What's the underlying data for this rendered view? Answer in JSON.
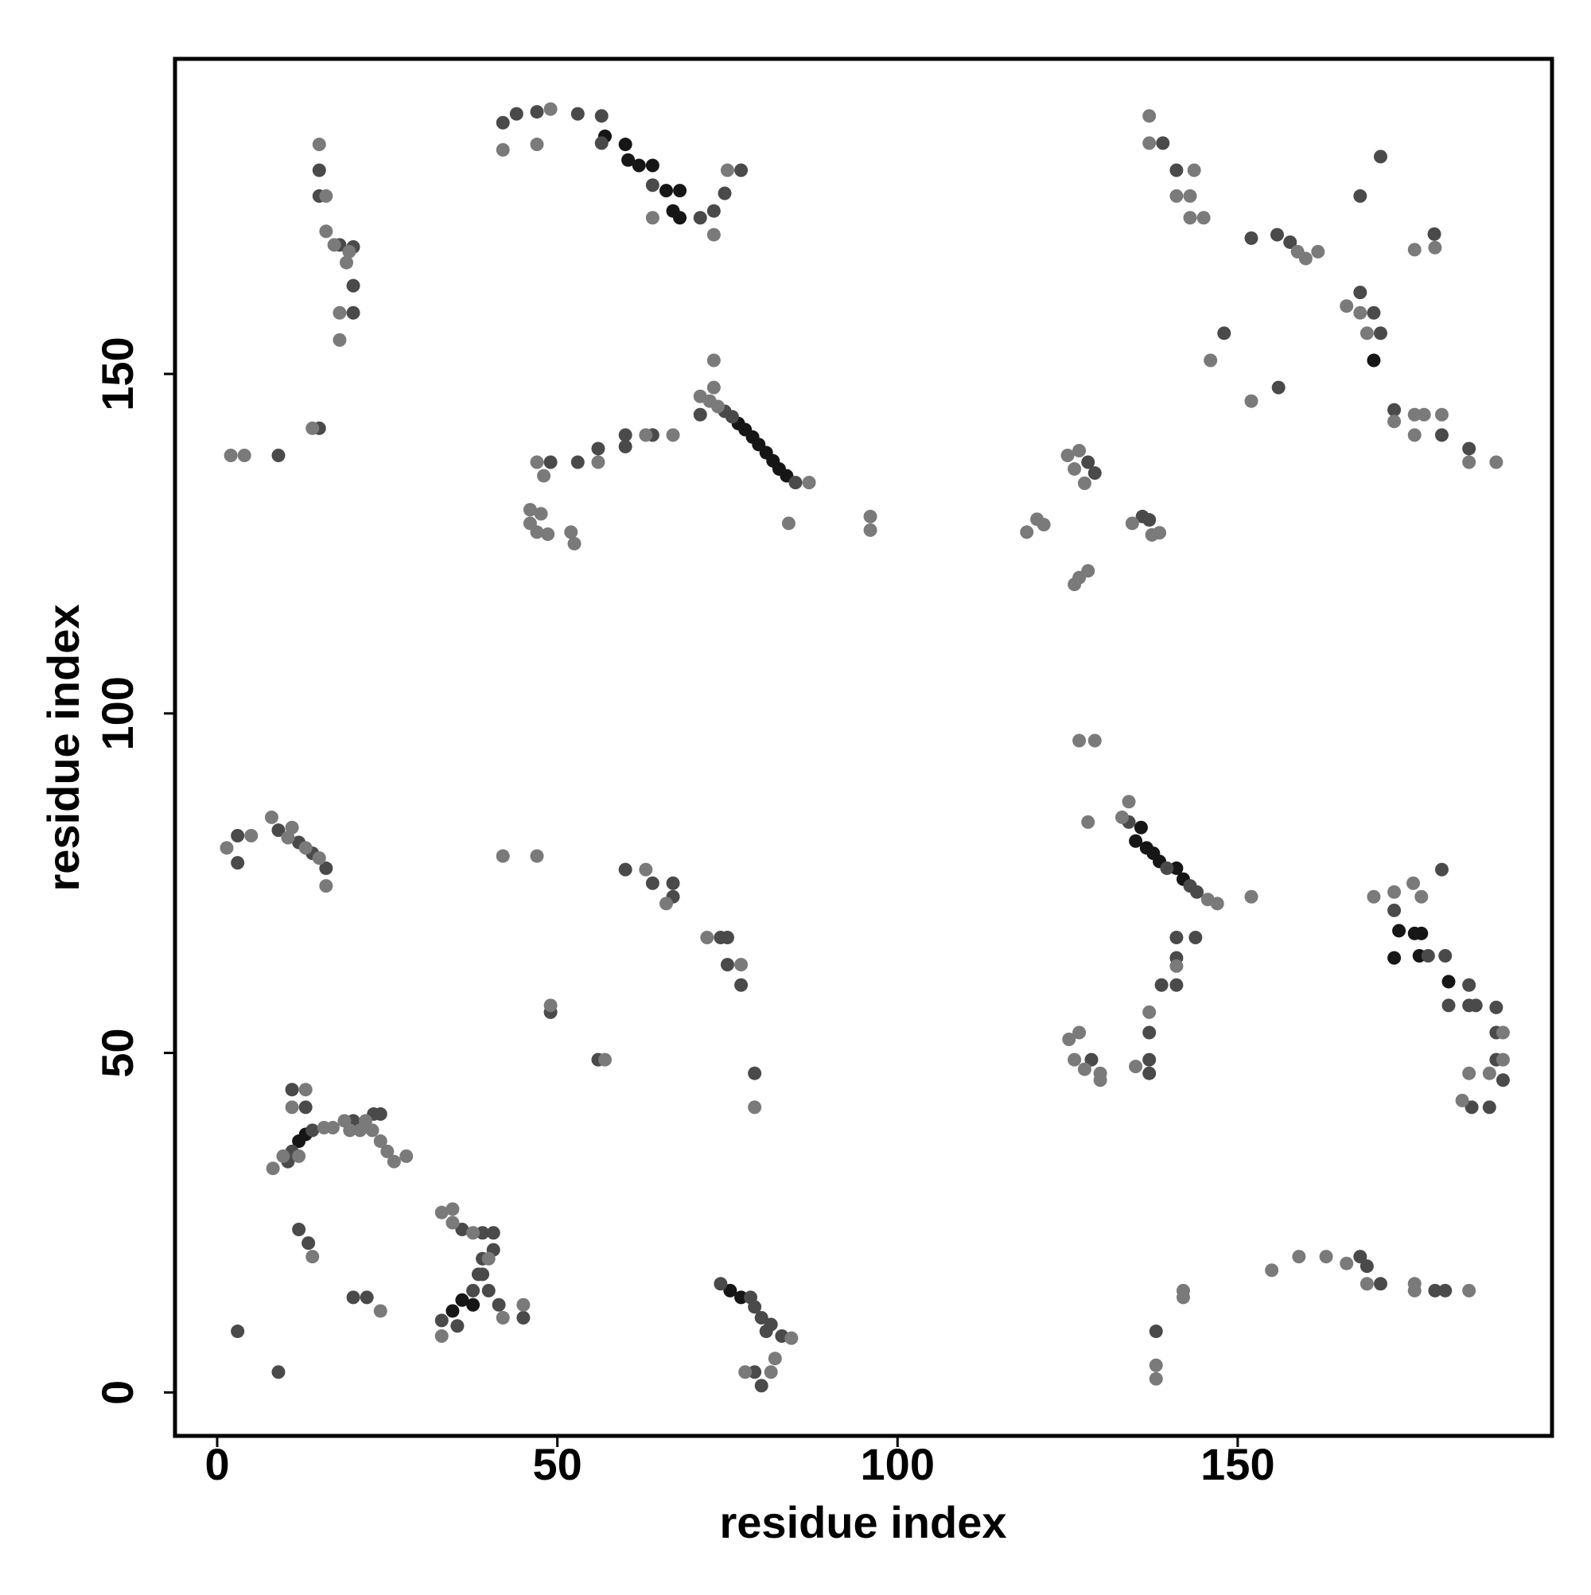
{
  "chart_data": {
    "type": "scatter",
    "x_label": "residue index",
    "y_label": "residue index",
    "xlim": [
      -6.2,
      196.2
    ],
    "ylim": [
      -6.4,
      196.4
    ],
    "xticks": [
      0,
      50,
      100,
      150
    ],
    "yticks": [
      0,
      50,
      100,
      150
    ],
    "series": [
      {
        "color": "#161616",
        "x": [
          135.8,
          135,
          136.6,
          137.6,
          138.5,
          141,
          142,
          76.6,
          77.6,
          78.7,
          79.6,
          80.7,
          81.7,
          82.6,
          83.7,
          57,
          60,
          60.4,
          62,
          64,
          66,
          68,
          67,
          68,
          173.7,
          176,
          177,
          173,
          176.7,
          181,
          36,
          37.6,
          34.6,
          12,
          13,
          75.4,
          77,
          170
        ],
        "y": [
          83.2,
          81.2,
          80.2,
          79.4,
          78.2,
          77.2,
          75.6,
          142.7,
          141.8,
          140.7,
          139.6,
          138.4,
          137.2,
          136,
          135,
          185,
          183.8,
          181.5,
          180.7,
          180.7,
          177,
          177,
          174,
          173,
          68,
          67.6,
          67.6,
          64,
          64.3,
          60.5,
          13.6,
          12.9,
          12,
          37,
          38,
          15,
          14,
          152
        ]
      },
      {
        "color": "#4a4a4a",
        "x": [
          11,
          14,
          20,
          23,
          24,
          11,
          13,
          10.4,
          36,
          39,
          40.6,
          40.6,
          39,
          38.4,
          37.6,
          33,
          35.3,
          39.9,
          41.4,
          45,
          39,
          12,
          13.4,
          20,
          22,
          3,
          9,
          74,
          78.4,
          79,
          80,
          81.4,
          80.7,
          83,
          79,
          80,
          3,
          3,
          9,
          12,
          14,
          16,
          60,
          64,
          67,
          67,
          74,
          75,
          75,
          77,
          49,
          56,
          79,
          134,
          139.6,
          143,
          144,
          141,
          143.8,
          141,
          138.8,
          141,
          137,
          137,
          137,
          128.5,
          173,
          178,
          180.5,
          184,
          181,
          184,
          185,
          188,
          188,
          188,
          189,
          184.4,
          187,
          180,
          168,
          169,
          171,
          179,
          180.5,
          138,
          42,
          44,
          47,
          53,
          56.5,
          56.5,
          64,
          71,
          73,
          74.6,
          77,
          15,
          15,
          18,
          20,
          20,
          20,
          15,
          9,
          74.6,
          75.7,
          85,
          71,
          64,
          60,
          60,
          56,
          49,
          53,
          128,
          129,
          136,
          137,
          139,
          141,
          152,
          155.8,
          157.7,
          168,
          170,
          171,
          148,
          156,
          171,
          168,
          178.9,
          173,
          180,
          184
        ],
        "y": [
          35.5,
          38.6,
          40,
          41,
          41,
          44.6,
          42,
          34,
          24,
          23.5,
          23.5,
          21,
          19.7,
          17.4,
          15,
          10.6,
          9.8,
          15,
          12.9,
          11,
          17.4,
          24,
          22,
          14,
          14,
          9,
          3,
          16,
          14,
          12.6,
          11,
          10,
          9,
          8.3,
          3,
          1,
          78,
          82,
          82.8,
          81,
          79.4,
          77.2,
          77,
          75,
          75,
          73,
          67,
          67,
          63,
          60,
          56,
          49,
          47,
          84,
          77.2,
          74.6,
          73.7,
          67,
          67,
          64,
          60,
          60,
          53,
          49,
          47,
          49,
          71,
          64.3,
          64.3,
          60,
          57,
          57,
          57,
          56.7,
          53,
          49,
          46,
          42,
          42,
          77,
          20,
          18.6,
          16,
          15,
          15,
          9,
          187,
          188.3,
          188.6,
          188.3,
          188,
          184,
          177.8,
          173,
          174,
          176.6,
          180,
          180,
          176.2,
          169,
          168.7,
          163,
          159,
          142,
          138,
          144.5,
          143.7,
          134,
          144,
          141,
          141,
          139.3,
          139,
          137,
          137,
          137,
          135.4,
          129,
          128.5,
          184,
          180,
          170,
          170.5,
          169.4,
          162,
          159,
          156,
          156,
          148,
          182,
          176.2,
          170.6,
          144.7,
          141,
          139
        ]
      },
      {
        "color": "#7a7a7a",
        "x": [
          8.2,
          9.7,
          15.7,
          17,
          18.7,
          21.8,
          22.8,
          24,
          25,
          26,
          27.8,
          13,
          11,
          12,
          19.5,
          21,
          33,
          34.6,
          34.6,
          37.6,
          33,
          42,
          45,
          39.9,
          14,
          24,
          82,
          81.4,
          84.4,
          77.6,
          1.4,
          5,
          8,
          10.4,
          13,
          15,
          16,
          11,
          42,
          47,
          63,
          66,
          72,
          77,
          49,
          57,
          79,
          134,
          133,
          145.6,
          147,
          152,
          141,
          137,
          135,
          128,
          125.2,
          126.7,
          126,
          127.5,
          129.8,
          129.8,
          126.7,
          129,
          170,
          173,
          175.8,
          177,
          189,
          189,
          187,
          184,
          183,
          155,
          159,
          163,
          166,
          169,
          176,
          176,
          184,
          142,
          142,
          138,
          138,
          49,
          73,
          75,
          42,
          47,
          64,
          15,
          16,
          16,
          17.2,
          19.4,
          19,
          18,
          18,
          14,
          2,
          4,
          71,
          72.4,
          73,
          73.6,
          87,
          84,
          73,
          67,
          63,
          56,
          47,
          48,
          46,
          47.6,
          46,
          47,
          48.6,
          52,
          52.5,
          96,
          96,
          119,
          120.5,
          121.5,
          125,
          126.7,
          126,
          127.5,
          126.7,
          128,
          126,
          134.5,
          137.4,
          138.5,
          137,
          137,
          143.6,
          141,
          143,
          143,
          145,
          158.8,
          160,
          161.8,
          166,
          168,
          169,
          146,
          152,
          176,
          179,
          173,
          176,
          177.4,
          180,
          176,
          184,
          188
        ],
        "y": [
          33,
          34.8,
          39,
          39,
          40,
          40,
          38.6,
          37,
          35.5,
          34,
          34.8,
          44.6,
          42,
          34.8,
          38.6,
          38.6,
          26.5,
          27,
          25,
          23.5,
          8.3,
          11,
          12.9,
          19.7,
          20,
          12,
          5,
          3,
          8,
          3,
          80.2,
          82,
          84.7,
          81.7,
          80.2,
          78.7,
          74.6,
          83.2,
          79,
          79,
          77,
          72,
          67,
          63,
          57,
          49,
          42,
          87,
          84.7,
          72.6,
          72,
          73,
          62.8,
          56,
          48,
          84,
          52,
          53,
          49,
          47.6,
          47,
          46,
          96,
          96,
          73,
          73.7,
          75,
          73,
          53,
          49,
          47,
          47,
          43,
          18,
          20,
          20,
          19,
          16,
          15,
          16,
          15,
          15,
          14,
          4,
          2,
          189,
          170.5,
          180,
          183,
          183.8,
          173,
          183.8,
          176.2,
          171,
          169,
          168,
          166.4,
          159,
          155,
          142,
          138,
          138,
          146.7,
          146,
          148,
          145.2,
          134,
          128,
          152,
          141,
          141,
          137,
          137,
          135,
          130,
          129.4,
          128,
          126.7,
          126.4,
          126.7,
          125,
          129,
          127,
          126.7,
          128.6,
          127.8,
          138,
          138.7,
          136,
          133.9,
          120,
          121,
          119,
          128,
          126.3,
          126.6,
          188,
          184,
          180,
          176.2,
          176.2,
          173,
          173,
          168,
          167,
          168,
          160,
          159,
          156,
          152,
          146,
          168.3,
          168.6,
          143,
          144,
          144,
          144,
          141,
          137,
          137
        ]
      }
    ]
  }
}
